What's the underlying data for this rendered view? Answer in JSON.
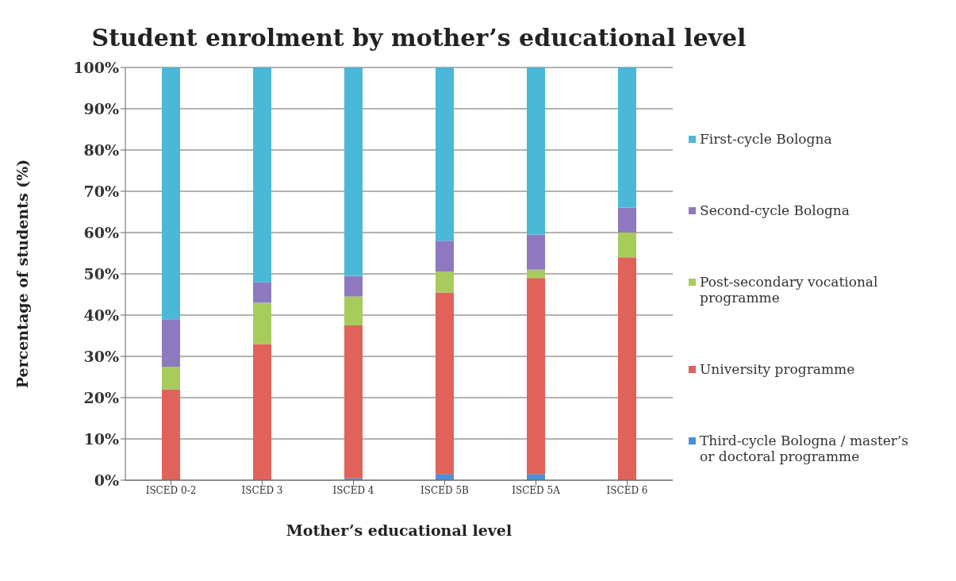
{
  "chart_data": {
    "type": "bar",
    "title": "Student enrolment by mother’s educational level",
    "xlabel": "Mother’s educational level",
    "ylabel": "Percentage of students (%)",
    "categories": [
      "ISCED 0-2",
      "ISCED 3",
      "ISCED 4",
      "ISCED 5B",
      "ISCED 5A",
      "ISCED 6"
    ],
    "stacked": true,
    "series": [
      {
        "name": "Third-cycle Bologna / master’s or doctoral programme",
        "color": "#4d8fd6",
        "values": [
          0,
          0,
          0.5,
          1.5,
          1.5,
          0
        ]
      },
      {
        "name": "University programme",
        "color": "#e0625a",
        "values": [
          22,
          33,
          37,
          44,
          47.5,
          54
        ]
      },
      {
        "name": "Post-secondary vocational programme",
        "color": "#a8cc5c",
        "values": [
          5.5,
          10,
          7,
          5,
          2,
          6
        ]
      },
      {
        "name": "Second-cycle Bologna",
        "color": "#8e79c0",
        "values": [
          11.5,
          5,
          5,
          7.5,
          8.5,
          6
        ]
      },
      {
        "name": "First-cycle Bologna",
        "color": "#4bb8d8",
        "values": [
          61,
          52,
          50.5,
          42,
          40.5,
          34
        ]
      }
    ],
    "ylim": [
      0,
      100
    ],
    "yticks": [
      {
        "value": 0,
        "label": "0%"
      },
      {
        "value": 10,
        "label": "10%"
      },
      {
        "value": 20,
        "label": "20%"
      },
      {
        "value": 30,
        "label": "30%"
      },
      {
        "value": 40,
        "label": "40%"
      },
      {
        "value": 50,
        "label": "50%"
      },
      {
        "value": 60,
        "label": "60%"
      },
      {
        "value": 70,
        "label": "70%"
      },
      {
        "value": 80,
        "label": "80%"
      },
      {
        "value": 90,
        "label": "90%"
      },
      {
        "value": 100,
        "label": "100%"
      }
    ],
    "grid": "y",
    "legend": "right"
  }
}
